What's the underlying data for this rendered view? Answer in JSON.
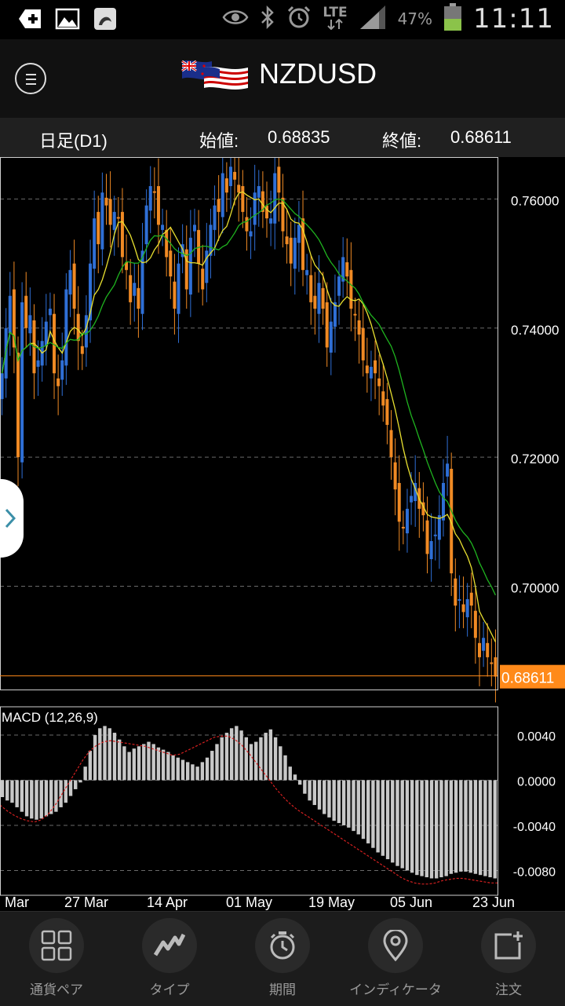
{
  "status_bar": {
    "network": "LTE",
    "battery": "47%",
    "time": "11:11",
    "left_icons": [
      "add-notification-icon",
      "image-icon",
      "app-icon"
    ],
    "right_icons": [
      "eye-icon",
      "bluetooth-icon",
      "alarm-icon",
      "signal-icon",
      "battery-icon"
    ]
  },
  "header": {
    "title": "NZDUSD",
    "menu_icon": "menu-icon",
    "flag_icon": "nz-us-flags-icon"
  },
  "info_bar": {
    "timeframe": "日足(D1)",
    "open_label": "始値:",
    "open_value": "0.68835",
    "close_label": "終値:",
    "close_value": "0.68611"
  },
  "price_axis": {
    "labels": [
      "0.76000",
      "0.74000",
      "0.72000",
      "0.70000"
    ],
    "current": "0.68611"
  },
  "macd": {
    "title": "MACD (12,26,9)",
    "labels": [
      "0.0040",
      "0.0000",
      "-0.0040",
      "-0.0080"
    ]
  },
  "x_axis": [
    "Mar",
    "27 Mar",
    "14 Apr",
    "01 May",
    "19 May",
    "05 Jun",
    "23 Jun"
  ],
  "nav": [
    {
      "label": "通貨ペア",
      "icon": "grid-icon"
    },
    {
      "label": "タイプ",
      "icon": "line-chart-icon"
    },
    {
      "label": "期間",
      "icon": "clock-icon"
    },
    {
      "label": "インディケータ",
      "icon": "location-pin-icon"
    },
    {
      "label": "注文",
      "icon": "new-order-icon"
    }
  ],
  "colors": {
    "bull": "#2f6fd6",
    "bear": "#f08a24",
    "ma_fast": "#e8e030",
    "ma_slow": "#1fb31f",
    "macd_bar": "#c8c8c8",
    "signal": "#d42020",
    "current_price": "#ff8a1a"
  },
  "chart_data": {
    "type": "candlestick",
    "y_range": [
      0.684,
      0.7665
    ],
    "macd_range": [
      -0.0095,
      0.0065
    ],
    "closes": [
      0.733,
      0.74,
      0.745,
      0.737,
      0.72,
      0.744,
      0.74,
      0.742,
      0.733,
      0.735,
      0.738,
      0.741,
      0.743,
      0.733,
      0.731,
      0.735,
      0.746,
      0.749,
      0.743,
      0.738,
      0.736,
      0.742,
      0.75,
      0.757,
      0.753,
      0.761,
      0.759,
      0.756,
      0.758,
      0.757,
      0.751,
      0.749,
      0.744,
      0.747,
      0.743,
      0.752,
      0.759,
      0.762,
      0.761,
      0.756,
      0.756,
      0.751,
      0.748,
      0.743,
      0.75,
      0.753,
      0.746,
      0.754,
      0.756,
      0.75,
      0.746,
      0.752,
      0.756,
      0.759,
      0.758,
      0.764,
      0.761,
      0.765,
      0.763,
      0.761,
      0.758,
      0.755,
      0.755,
      0.761,
      0.762,
      0.758,
      0.757,
      0.757,
      0.764,
      0.761,
      0.755,
      0.753,
      0.75,
      0.754,
      0.756,
      0.749,
      0.749,
      0.744,
      0.743,
      0.747,
      0.743,
      0.737,
      0.741,
      0.744,
      0.748,
      0.751,
      0.748,
      0.743,
      0.742,
      0.739,
      0.735,
      0.733,
      0.734,
      0.733,
      0.731,
      0.728,
      0.725,
      0.72,
      0.715,
      0.71,
      0.709,
      0.712,
      0.714,
      0.716,
      0.712,
      0.711,
      0.705,
      0.707,
      0.708,
      0.711,
      0.716,
      0.719,
      0.702,
      0.697,
      0.698,
      0.696,
      0.698,
      0.697,
      0.692,
      0.689,
      0.692,
      0.689,
      0.688,
      0.686
    ],
    "macd_hist": [
      -0.0015,
      -0.0018,
      -0.002,
      -0.0024,
      -0.0028,
      -0.0032,
      -0.0034,
      -0.0035,
      -0.0034,
      -0.0032,
      -0.003,
      -0.0028,
      -0.0024,
      -0.002,
      -0.0014,
      -0.0008,
      -0.0002,
      0.0012,
      0.0026,
      0.004,
      0.0046,
      0.0048,
      0.0046,
      0.0042,
      0.0036,
      0.003,
      0.0025,
      0.0028,
      0.003,
      0.0032,
      0.0034,
      0.0032,
      0.0029,
      0.0027,
      0.0025,
      0.0022,
      0.002,
      0.0018,
      0.0016,
      0.0014,
      0.0012,
      0.0016,
      0.002,
      0.0026,
      0.0032,
      0.0038,
      0.0042,
      0.0046,
      0.0048,
      0.0044,
      0.0038,
      0.0032,
      0.0034,
      0.0038,
      0.0042,
      0.0045,
      0.0038,
      0.003,
      0.0022,
      0.0012,
      0.0005,
      -0.0004,
      -0.0012,
      -0.0018,
      -0.0022,
      -0.0026,
      -0.003,
      -0.0033,
      -0.0036,
      -0.0038,
      -0.004,
      -0.0042,
      -0.0045,
      -0.0048,
      -0.0052,
      -0.0056,
      -0.006,
      -0.0064,
      -0.0067,
      -0.007,
      -0.0073,
      -0.0076,
      -0.0078,
      -0.008,
      -0.0082,
      -0.0084,
      -0.0085,
      -0.0086,
      -0.0087,
      -0.0087,
      -0.0086,
      -0.0085,
      -0.0083,
      -0.0082,
      -0.0081,
      -0.0081,
      -0.0082,
      -0.0083,
      -0.0084,
      -0.0085,
      -0.0086,
      -0.0087
    ],
    "macd_signal": [
      -0.0022,
      -0.0027,
      -0.0031,
      -0.0034,
      -0.0036,
      -0.0037,
      -0.0035,
      -0.003,
      -0.0022,
      -0.0012,
      -0.0002,
      0.0008,
      0.0018,
      0.0026,
      0.0031,
      0.0034,
      0.0035,
      0.0034,
      0.0033,
      0.0032,
      0.0031,
      0.003,
      0.0028,
      0.0026,
      0.0024,
      0.0022,
      0.0023,
      0.0026,
      0.0029,
      0.0032,
      0.0035,
      0.0038,
      0.0039,
      0.0039,
      0.0036,
      0.0031,
      0.0024,
      0.0016,
      0.0008,
      0.0,
      -0.0008,
      -0.0015,
      -0.0021,
      -0.0026,
      -0.003,
      -0.0034,
      -0.0038,
      -0.0042,
      -0.0046,
      -0.005,
      -0.0054,
      -0.0058,
      -0.0062,
      -0.0066,
      -0.007,
      -0.0074,
      -0.0078,
      -0.0082,
      -0.0086,
      -0.0089,
      -0.0091,
      -0.0092,
      -0.0092,
      -0.0091,
      -0.0089,
      -0.0088,
      -0.0087,
      -0.0087,
      -0.0088,
      -0.0089,
      -0.009,
      -0.0091,
      -0.0091
    ]
  }
}
